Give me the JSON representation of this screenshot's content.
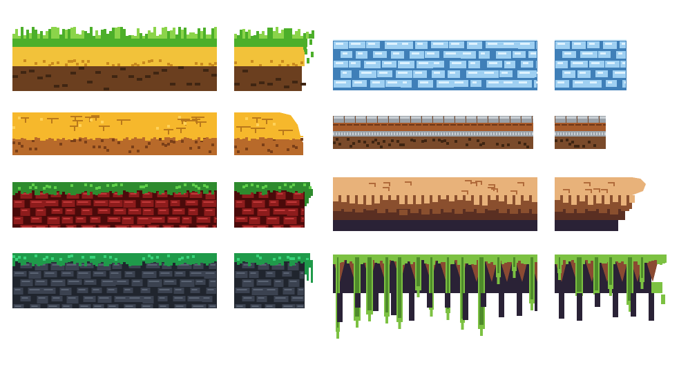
{
  "sheet": {
    "tiles": [
      {
        "id": "grass-long",
        "style": "grass",
        "colors": {
          "top": "#4caf2a",
          "topLight": "#8bd44a",
          "mid": "#f2c23a",
          "midDark": "#c98a1e",
          "base": "#6b3f1f",
          "baseDark": "#3f2512"
        }
      },
      {
        "id": "grass-end",
        "style": "grass",
        "colors": {
          "top": "#4caf2a",
          "topLight": "#8bd44a",
          "mid": "#f2c23a",
          "midDark": "#c98a1e",
          "base": "#6b3f1f",
          "baseDark": "#3f2512"
        }
      },
      {
        "id": "sand-long",
        "style": "cracked",
        "colors": {
          "top": "#f6b82c",
          "topLight": "#ffd25a",
          "crack": "#b9781b",
          "base": "#b86a2a",
          "baseDark": "#7a3f18"
        }
      },
      {
        "id": "sand-end",
        "style": "cracked-round",
        "colors": {
          "top": "#f6b82c",
          "topLight": "#ffd25a",
          "crack": "#b9781b",
          "base": "#b86a2a",
          "baseDark": "#7a3f18"
        }
      },
      {
        "id": "redrock-long",
        "style": "mossrock",
        "colors": {
          "moss": "#2e8b2e",
          "mossLight": "#5fcf4a",
          "rock": "#8d1c1c",
          "rockLight": "#c23a3a",
          "gap": "#4a0a0a"
        }
      },
      {
        "id": "redrock-end",
        "style": "mossrock-drip",
        "colors": {
          "moss": "#2e8b2e",
          "mossLight": "#5fcf4a",
          "rock": "#8d1c1c",
          "rockLight": "#c23a3a",
          "gap": "#4a0a0a"
        }
      },
      {
        "id": "slate-long",
        "style": "mossrock",
        "colors": {
          "moss": "#1f9a4a",
          "mossLight": "#39d37a",
          "rock": "#3b4250",
          "rockLight": "#5b6474",
          "gap": "#20252e"
        }
      },
      {
        "id": "slate-end",
        "style": "mossrock-drip",
        "colors": {
          "moss": "#1f9a4a",
          "mossLight": "#39d37a",
          "rock": "#3b4250",
          "rockLight": "#5b6474",
          "gap": "#20252e"
        }
      },
      {
        "id": "ice-long",
        "style": "ice",
        "colors": {
          "base": "#6fa9d6",
          "stone": "#9fd0f2",
          "light": "#dff3ff",
          "gap": "#3f7fb8"
        }
      },
      {
        "id": "ice-end",
        "style": "ice",
        "colors": {
          "base": "#6fa9d6",
          "stone": "#9fd0f2",
          "light": "#dff3ff",
          "gap": "#3f7fb8"
        }
      },
      {
        "id": "rail-long",
        "style": "rail",
        "colors": {
          "top": "#9aa1a8",
          "topLight": "#c9cfd4",
          "plank": "#a65a2a",
          "plankDark": "#6b3517",
          "base": "#7a4a2a",
          "baseDark": "#3f2512"
        }
      },
      {
        "id": "rail-end",
        "style": "rail",
        "colors": {
          "top": "#9aa1a8",
          "topLight": "#c9cfd4",
          "plank": "#a65a2a",
          "plankDark": "#6b3517",
          "base": "#7a4a2a",
          "baseDark": "#3f2512"
        }
      },
      {
        "id": "clay-long",
        "style": "clay",
        "colors": {
          "top": "#e8b27a",
          "crack": "#b06a3a",
          "mid": "#8a4f2e",
          "dark": "#5a2f22",
          "base": "#2a2236"
        }
      },
      {
        "id": "clay-end",
        "style": "clay-round",
        "colors": {
          "top": "#e8b27a",
          "crack": "#b06a3a",
          "mid": "#8a4f2e",
          "dark": "#5a2f22",
          "base": "#2a2236"
        }
      },
      {
        "id": "cave-long",
        "style": "cave",
        "colors": {
          "moss": "#7cc142",
          "mossDark": "#4e8a2a",
          "dirt": "#8a4a32",
          "dark": "#2a2236"
        }
      },
      {
        "id": "cave-end",
        "style": "cave",
        "colors": {
          "moss": "#7cc142",
          "mossDark": "#4e8a2a",
          "dirt": "#8a4a32",
          "dark": "#2a2236"
        }
      }
    ]
  }
}
